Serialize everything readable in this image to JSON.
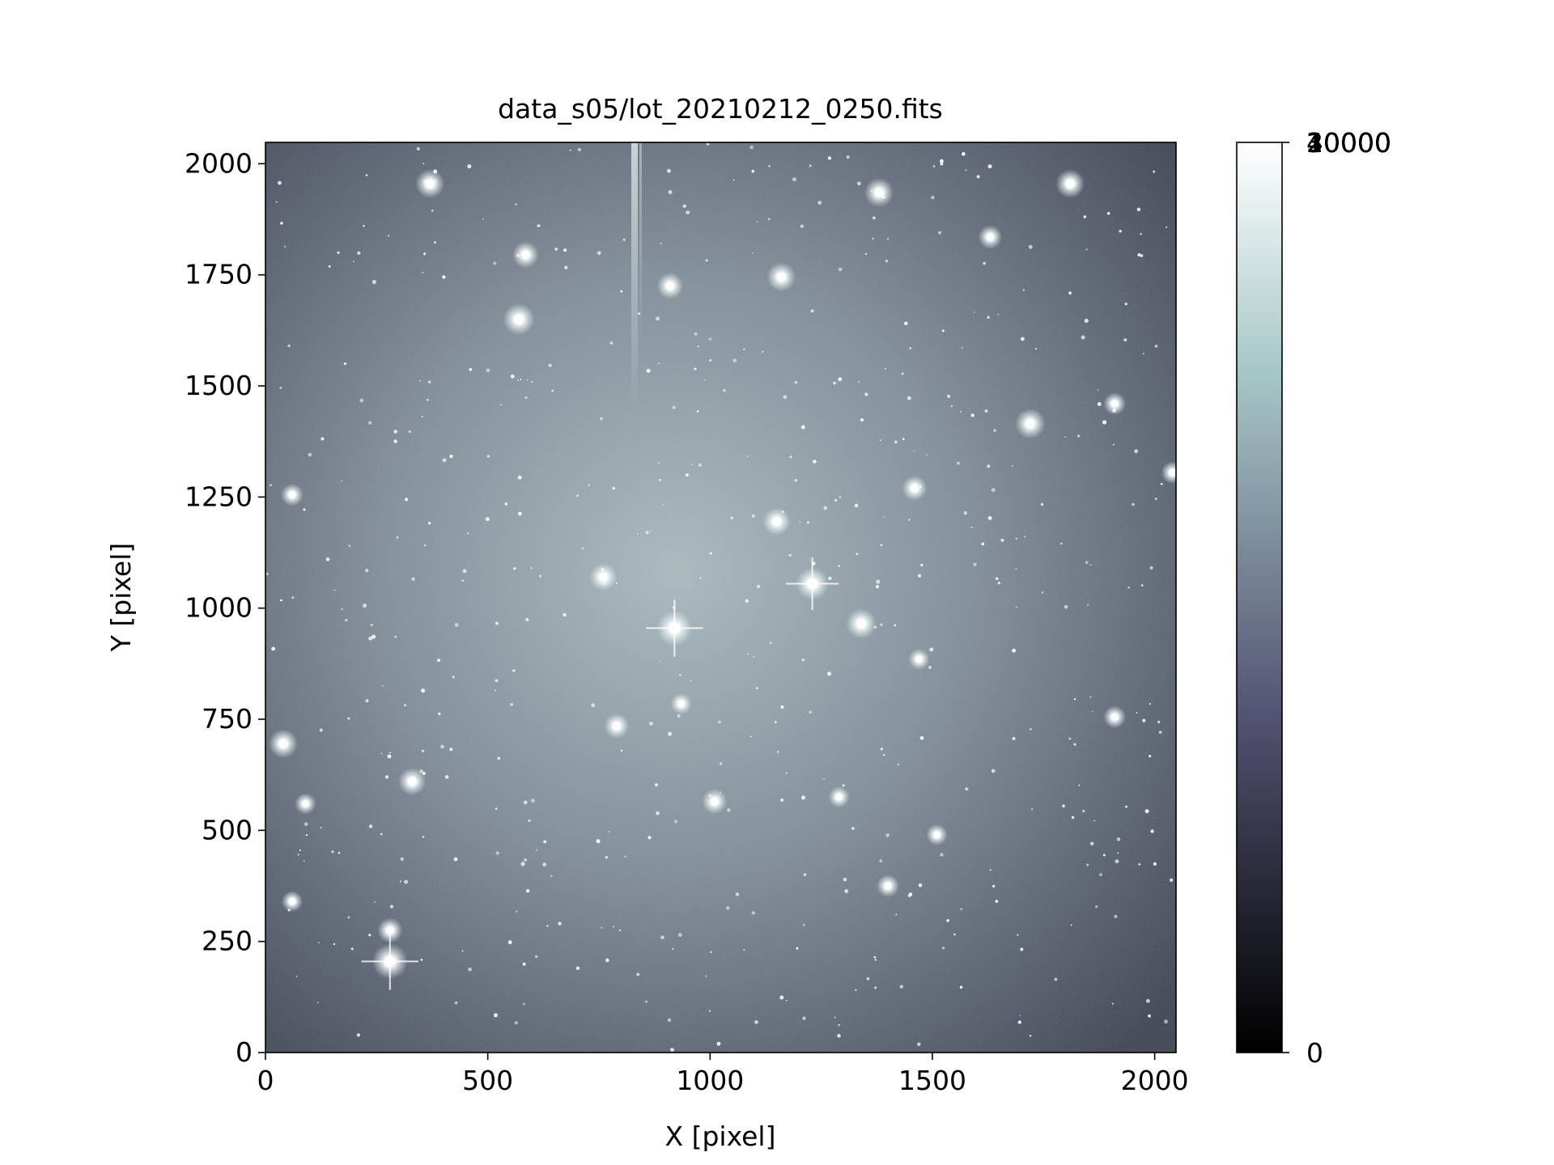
{
  "chart_data": {
    "type": "heatmap",
    "title": "data_s05/lot_20210212_0250.fits",
    "xlabel": "X [pixel]",
    "ylabel": "Y [pixel]",
    "xlim": [
      0,
      2048
    ],
    "ylim": [
      0,
      2048
    ],
    "x_ticks": [
      0,
      500,
      1000,
      1500,
      2000
    ],
    "y_ticks": [
      0,
      250,
      500,
      750,
      1000,
      1250,
      1500,
      1750,
      2000
    ],
    "colormap": "bone",
    "colorbar": {
      "range": [
        0,
        40000
      ],
      "tick_labels": [
        "0",
        "10000",
        "20000",
        "30000",
        "40000"
      ],
      "overlapping_top_labels": [
        "10000",
        "20000",
        "30000",
        "40000"
      ]
    },
    "bright_sources": [
      {
        "x": 920,
        "y": 955,
        "brightness": 1.0
      },
      {
        "x": 280,
        "y": 205,
        "brightness": 1.0
      },
      {
        "x": 1230,
        "y": 1055,
        "brightness": 0.9
      },
      {
        "x": 1340,
        "y": 965,
        "brightness": 0.8
      },
      {
        "x": 570,
        "y": 1650,
        "brightness": 0.85
      },
      {
        "x": 1720,
        "y": 1415,
        "brightness": 0.8
      },
      {
        "x": 40,
        "y": 695,
        "brightness": 0.75
      },
      {
        "x": 330,
        "y": 610,
        "brightness": 0.7
      },
      {
        "x": 760,
        "y": 1070,
        "brightness": 0.7
      },
      {
        "x": 1150,
        "y": 1195,
        "brightness": 0.7
      },
      {
        "x": 1160,
        "y": 1745,
        "brightness": 0.75
      },
      {
        "x": 1380,
        "y": 1935,
        "brightness": 0.75
      },
      {
        "x": 370,
        "y": 1955,
        "brightness": 0.75
      },
      {
        "x": 1810,
        "y": 1955,
        "brightness": 0.75
      },
      {
        "x": 585,
        "y": 1795,
        "brightness": 0.65
      },
      {
        "x": 910,
        "y": 1725,
        "brightness": 0.65
      },
      {
        "x": 790,
        "y": 735,
        "brightness": 0.6
      },
      {
        "x": 1010,
        "y": 565,
        "brightness": 0.6
      },
      {
        "x": 1460,
        "y": 1270,
        "brightness": 0.6
      },
      {
        "x": 1630,
        "y": 1835,
        "brightness": 0.55
      },
      {
        "x": 280,
        "y": 275,
        "brightness": 0.6
      },
      {
        "x": 1910,
        "y": 755,
        "brightness": 0.5
      },
      {
        "x": 1910,
        "y": 1460,
        "brightness": 0.5
      },
      {
        "x": 2040,
        "y": 1305,
        "brightness": 0.5
      },
      {
        "x": 60,
        "y": 1255,
        "brightness": 0.5
      },
      {
        "x": 1400,
        "y": 375,
        "brightness": 0.5
      },
      {
        "x": 60,
        "y": 340,
        "brightness": 0.45
      },
      {
        "x": 90,
        "y": 560,
        "brightness": 0.45
      },
      {
        "x": 1510,
        "y": 490,
        "brightness": 0.45
      },
      {
        "x": 935,
        "y": 785,
        "brightness": 0.45
      },
      {
        "x": 1290,
        "y": 575,
        "brightness": 0.45
      },
      {
        "x": 1470,
        "y": 885,
        "brightness": 0.45
      }
    ]
  }
}
